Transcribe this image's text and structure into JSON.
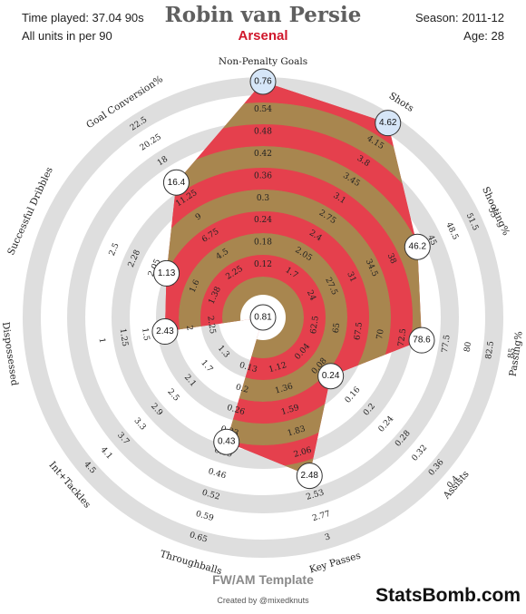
{
  "header": {
    "time_played": "Time played: 37.04 90s",
    "units_note": "All units in per 90",
    "player_name": "Robin van Persie",
    "team": "Arsenal",
    "season": "Season: 2011-12",
    "age": "Age: 28"
  },
  "footer": {
    "template_name": "FW/AM Template",
    "credit": "Created by @mixedknuts",
    "brand": "StatsBomb.com"
  },
  "colors": {
    "band_red": "#e5404d",
    "band_brown": "#a8864f",
    "ring_grey": "#dedede",
    "highlight_fill": "#d6e6f8"
  },
  "chart_data": {
    "type": "radar",
    "grid": true,
    "axes": [
      {
        "label": "Non-Penalty Goals",
        "value": 0.76,
        "value_label": "0.76",
        "ticks": [
          "0.12",
          "0.18",
          "0.24",
          "0.3",
          "0.36",
          "0.42",
          "0.48",
          "0.54"
        ],
        "highlight": true
      },
      {
        "label": "Shots",
        "value": 4.62,
        "value_label": "4.62",
        "ticks": [
          "1.7",
          "2.05",
          "2.4",
          "2.75",
          "3.1",
          "3.45",
          "3.8",
          "4.15"
        ],
        "highlight": true
      },
      {
        "label": "Shooting%",
        "value": 46.2,
        "value_label": "46.2",
        "ticks": [
          "24",
          "27.5",
          "31",
          "34.5",
          "38",
          "41.5",
          "45",
          "48.5",
          "51.5",
          "55"
        ],
        "highlight": false
      },
      {
        "label": "Passing%",
        "value": 78.6,
        "value_label": "78.6",
        "ticks": [
          "62.5",
          "65",
          "67.5",
          "70",
          "72.5",
          "75",
          "77.5",
          "80",
          "82.5",
          "85"
        ],
        "highlight": false
      },
      {
        "label": "Assists",
        "value": 0.24,
        "value_label": "0.24",
        "ticks": [
          "0.04",
          "0.08",
          "0.12",
          "0.16",
          "0.2",
          "0.24",
          "0.28",
          "0.32",
          "0.36",
          "0.4"
        ],
        "highlight": false
      },
      {
        "label": "Key Passes",
        "value": 2.48,
        "value_label": "2.48",
        "ticks": [
          "1.12",
          "1.36",
          "1.59",
          "1.83",
          "2.06",
          "2.3",
          "2.53",
          "2.77",
          "3"
        ],
        "highlight": false
      },
      {
        "label": "Throughballs",
        "value": 0.43,
        "value_label": "0.43",
        "ticks": [
          "0.13",
          "0.2",
          "0.26",
          "0.33",
          "0.39",
          "0.46",
          "0.52",
          "0.59",
          "0.65"
        ],
        "highlight": false
      },
      {
        "label": "Int+Tackles",
        "value": 0.81,
        "value_label": "0.81",
        "ticks": [
          "1.3",
          "1.7",
          "2.1",
          "2.5",
          "2.9",
          "3.3",
          "3.7",
          "4.1",
          "4.5"
        ],
        "highlight": false
      },
      {
        "label": "Dispossessed",
        "value": 2.43,
        "value_label": "2.43",
        "ticks": [
          "2.25",
          "2",
          "1.75",
          "1.5",
          "1.25",
          "1"
        ],
        "highlight": false
      },
      {
        "label": "Successful Dribbles",
        "value": 1.13,
        "value_label": "1.13",
        "ticks": [
          "1.38",
          "1.6",
          "1.83",
          "2.05",
          "2.28",
          "2.5"
        ],
        "highlight": false
      },
      {
        "label": "Goal Conversion%",
        "value": 16.4,
        "value_label": "16.4",
        "ticks": [
          "2.25",
          "4.5",
          "6.75",
          "9",
          "11.25",
          "13.5",
          "18",
          "20.25",
          "22.5"
        ],
        "highlight": false
      }
    ]
  }
}
